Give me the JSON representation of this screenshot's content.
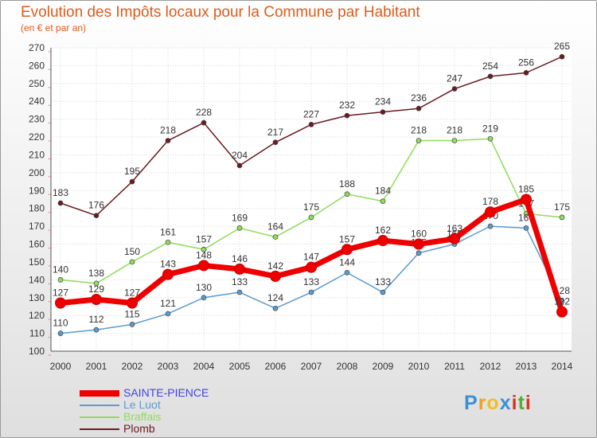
{
  "title": "Evolution des Impôts locaux pour la Commune par Habitant",
  "subtitle": "(en € et par an)",
  "logo": {
    "letters": [
      "P",
      "r",
      "o",
      "x",
      "i",
      "t",
      "i"
    ],
    "colors": [
      "#3a8fd8",
      "#f0a020",
      "#f0c020",
      "#3a8fd8",
      "#e03020",
      "#50b030",
      "#e03020"
    ]
  },
  "chart_data": {
    "type": "line",
    "x": [
      "2000",
      "2001",
      "2002",
      "2003",
      "2004",
      "2005",
      "2006",
      "2007",
      "2008",
      "2009",
      "2010",
      "2011",
      "2012",
      "2013",
      "2014"
    ],
    "ylim": [
      100,
      270
    ],
    "yticks": [
      100,
      110,
      120,
      130,
      140,
      150,
      160,
      170,
      180,
      190,
      200,
      210,
      220,
      230,
      240,
      250,
      260,
      270
    ],
    "grid": true,
    "legend_position": "bottom-left",
    "series": [
      {
        "name": "Plomb",
        "color": "#6b1a20",
        "values": [
          183,
          176,
          195,
          218,
          228,
          204,
          217,
          227,
          232,
          234,
          236,
          247,
          254,
          256,
          265
        ]
      },
      {
        "name": "Braffais",
        "color": "#8fdc5a",
        "values": [
          140,
          138,
          150,
          161,
          157,
          169,
          164,
          175,
          188,
          184,
          218,
          218,
          219,
          177,
          175
        ]
      },
      {
        "name": "Le Luot",
        "color": "#5b9bd0",
        "values": [
          110,
          112,
          115,
          121,
          130,
          133,
          124,
          133,
          144,
          133,
          155,
          160,
          170,
          169,
          128
        ]
      },
      {
        "name": "SAINTE-PIENCE",
        "color": "#ee0000",
        "values": [
          127,
          129,
          127,
          143,
          148,
          146,
          142,
          147,
          157,
          162,
          160,
          163,
          178,
          185,
          122
        ]
      }
    ],
    "legend": [
      "SAINTE-PIENCE",
      "Le Luot",
      "Braffais",
      "Plomb"
    ]
  }
}
